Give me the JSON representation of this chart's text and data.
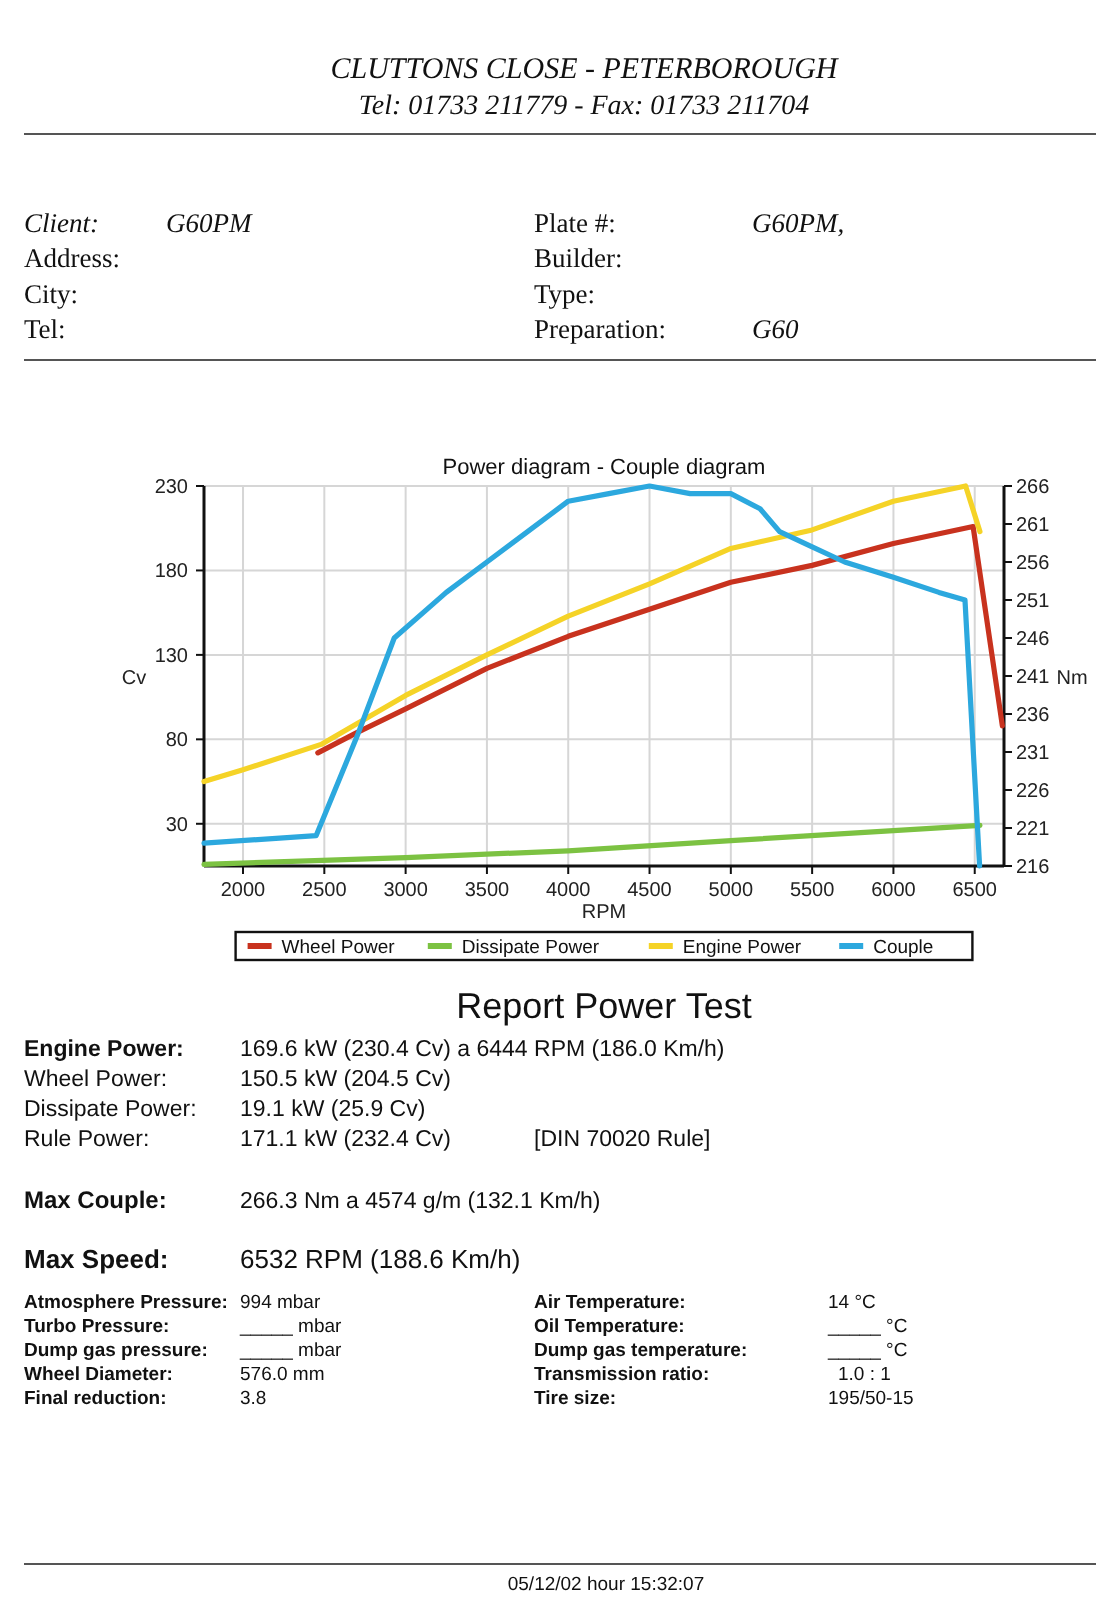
{
  "chart_data": {
    "type": "line",
    "title": "Power diagram - Couple diagram",
    "xlabel": "RPM",
    "ylabel": "Cv",
    "y2label": "Nm",
    "xlim": [
      1760,
      6680
    ],
    "xticks": [
      2000,
      2500,
      3000,
      3500,
      4000,
      4500,
      5000,
      5500,
      6000,
      6500
    ],
    "ylim": [
      5,
      230
    ],
    "yticks": [
      30,
      80,
      130,
      180,
      230
    ],
    "y2lim": [
      216,
      266
    ],
    "y2ticks": [
      216,
      221,
      226,
      231,
      236,
      241,
      246,
      251,
      256,
      261,
      266
    ],
    "grid": true,
    "legend": "bottom",
    "line_style": "solid",
    "series": [
      {
        "name": "Wheel Power",
        "color": "#c8321e",
        "x": [
          2460,
          2700,
          3000,
          3500,
          4000,
          4500,
          5000,
          5500,
          6000,
          6490,
          6670
        ],
        "values": [
          72,
          84,
          98,
          122,
          141,
          157,
          173,
          183,
          196,
          206,
          88
        ]
      },
      {
        "name": "Dissipate Power",
        "color": "#7cc242",
        "x": [
          1760,
          3000,
          4000,
          5000,
          6000,
          6532
        ],
        "values": [
          6,
          10,
          14,
          20,
          26,
          29
        ]
      },
      {
        "name": "Engine Power",
        "color": "#f5d327",
        "x": [
          1760,
          2000,
          2480,
          3000,
          3500,
          4000,
          4500,
          5000,
          5500,
          6000,
          6444,
          6532
        ],
        "values": [
          55,
          62,
          77,
          106,
          130,
          153,
          172,
          193,
          204,
          221,
          230,
          203
        ]
      },
      {
        "name": "Couple",
        "color": "#2ca8de",
        "axis": "y2",
        "x": [
          1760,
          2450,
          2700,
          2930,
          3250,
          3500,
          3750,
          4000,
          4250,
          4500,
          4750,
          5000,
          5180,
          5300,
          5500,
          5700,
          6000,
          6280,
          6440,
          6530
        ],
        "values": [
          219,
          220,
          233,
          246,
          252,
          256,
          260,
          264,
          265,
          266,
          265,
          265,
          263,
          260,
          258,
          256,
          254,
          252,
          251,
          216
        ]
      }
    ],
    "annotations": [
      "CLUTTONS CLOSE - PETERBOROUGH",
      "Tel: 01733 211779 - Fax: 01733 211704",
      "Client:",
      "G60PM",
      "Address:",
      "City:",
      "Tel:",
      "Plate #:",
      "G60PM,",
      "Builder:",
      "Type:",
      "Preparation:",
      "G60",
      "Report Power Test",
      "Engine Power:",
      "169.6 kW (230.4 Cv) a 6444 RPM (186.0 Km/h)",
      "Wheel Power:",
      "150.5 kW (204.5 Cv)",
      "Dissipate Power:",
      "19.1 kW (25.9 Cv)",
      "Rule Power:",
      "171.1 kW (232.4 Cv)",
      "[DIN 70020 Rule]",
      "Max Couple:",
      "266.3 Nm a 4574 g/m (132.1 Km/h)",
      "Max Speed:",
      "6532 RPM (188.6 Km/h)",
      "Atmosphere Pressure:",
      "994 mbar",
      "Turbo Pressure:",
      "_____ mbar",
      "Dump gas pressure:",
      "_____ mbar",
      "Wheel Diameter:",
      "576.0 mm",
      "Final reduction:",
      "3.8",
      "Air Temperature:",
      "14 °C",
      "Oil Temperature:",
      "_____ °C",
      "Dump gas temperature:",
      "_____ °C",
      "Transmission ratio:",
      "1.0 : 1",
      "Tire size:",
      "195/50-15",
      "05/12/02 hour 15:32:07"
    ]
  }
}
